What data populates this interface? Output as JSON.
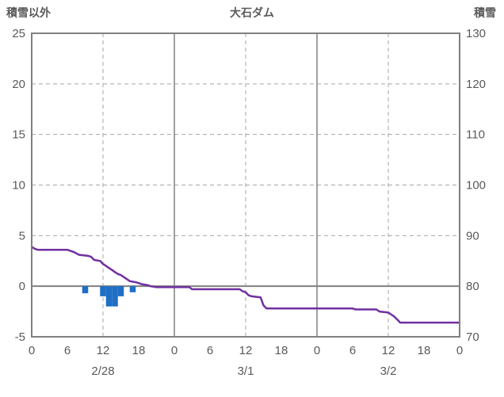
{
  "header": {
    "left_axis_title": "積雪以外",
    "title": "大石ダム",
    "right_axis_title": "積雪"
  },
  "chart_data": {
    "type": "line",
    "title": "大石ダム",
    "left_axis": {
      "label": "積雪以外",
      "min": -5,
      "max": 25,
      "ticks": [
        25,
        20,
        15,
        10,
        5,
        0,
        -5
      ]
    },
    "right_axis": {
      "label": "積雪",
      "min": 70,
      "max": 130,
      "ticks": [
        130,
        120,
        110,
        100,
        90,
        80,
        70
      ]
    },
    "x_axis": {
      "min": 0,
      "max": 72,
      "tick_hours": [
        0,
        6,
        12,
        18,
        24,
        30,
        36,
        42,
        48,
        54,
        60,
        66,
        72
      ],
      "tick_labels": [
        "0",
        "6",
        "12",
        "18",
        "0",
        "6",
        "12",
        "18",
        "0",
        "6",
        "12",
        "18",
        "0"
      ],
      "date_labels": [
        {
          "hour": 12,
          "label": "2/28"
        },
        {
          "hour": 36,
          "label": "3/1"
        },
        {
          "hour": 60,
          "label": "3/2"
        }
      ]
    },
    "gridlines": {
      "h_dashed": [
        20,
        15,
        10,
        5
      ],
      "h_solid": [
        0
      ],
      "v_dashed": [
        12,
        36,
        60
      ],
      "v_solid": [
        24,
        48
      ]
    },
    "line_series": {
      "color": "#7030A0",
      "axis": "left",
      "points": [
        [
          0,
          3.9
        ],
        [
          0.5,
          3.7
        ],
        [
          1,
          3.6
        ],
        [
          6,
          3.6
        ],
        [
          7,
          3.4
        ],
        [
          8,
          3.1
        ],
        [
          9.5,
          3.0
        ],
        [
          10,
          2.9
        ],
        [
          10.5,
          2.6
        ],
        [
          11.5,
          2.5
        ],
        [
          12,
          2.2
        ],
        [
          12.5,
          2.0
        ],
        [
          13,
          1.8
        ],
        [
          13.5,
          1.6
        ],
        [
          14,
          1.4
        ],
        [
          14.5,
          1.2
        ],
        [
          15,
          1.1
        ],
        [
          15.5,
          0.9
        ],
        [
          16,
          0.7
        ],
        [
          16.5,
          0.5
        ],
        [
          17.5,
          0.4
        ],
        [
          18,
          0.3
        ],
        [
          18.5,
          0.2
        ],
        [
          19.5,
          0.1
        ],
        [
          20,
          0.0
        ],
        [
          21,
          -0.1
        ],
        [
          26.5,
          -0.1
        ],
        [
          27,
          -0.3
        ],
        [
          35,
          -0.3
        ],
        [
          35.5,
          -0.5
        ],
        [
          36,
          -0.6
        ],
        [
          36.5,
          -0.9
        ],
        [
          37,
          -1.0
        ],
        [
          38.5,
          -1.1
        ],
        [
          39,
          -1.9
        ],
        [
          39.5,
          -2.2
        ],
        [
          54,
          -2.2
        ],
        [
          54.5,
          -2.3
        ],
        [
          58,
          -2.3
        ],
        [
          58.5,
          -2.5
        ],
        [
          60,
          -2.6
        ],
        [
          61,
          -3.0
        ],
        [
          61.5,
          -3.3
        ],
        [
          62,
          -3.6
        ],
        [
          72,
          -3.6
        ]
      ]
    },
    "bar_series": {
      "color": "#1F6FC5",
      "axis": "left",
      "bar_width_hours": 1.0,
      "points": [
        [
          9,
          -0.7
        ],
        [
          12,
          -1.0
        ],
        [
          13,
          -2.0
        ],
        [
          14,
          -2.0
        ],
        [
          15,
          -1.0
        ],
        [
          17,
          -0.6
        ]
      ]
    },
    "colors": {
      "text": "#595959",
      "grid": "#A6A6A6",
      "border": "#808080",
      "line": "#7030A0",
      "bar": "#1F6FC5"
    }
  }
}
